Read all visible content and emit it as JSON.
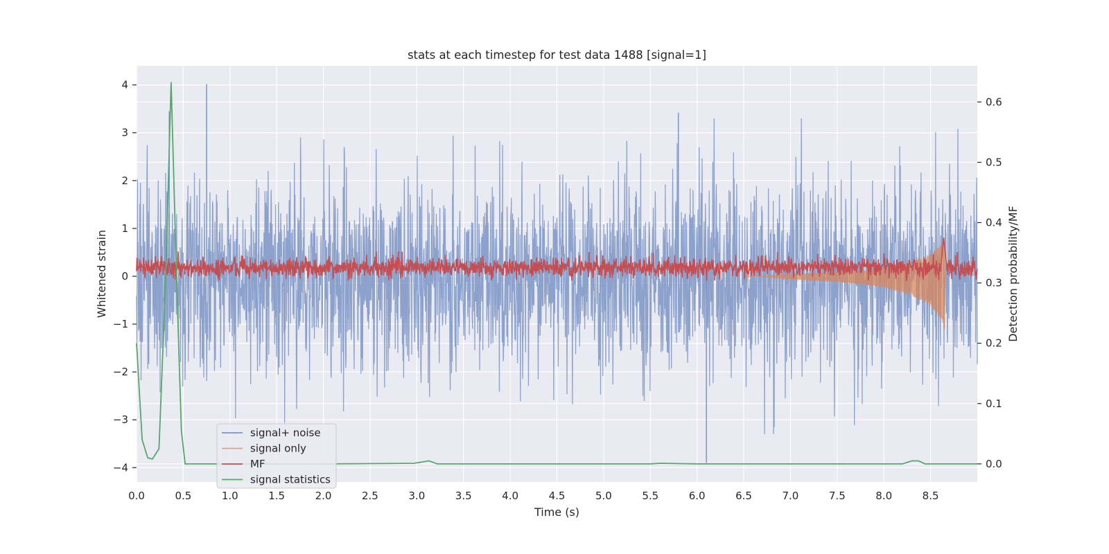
{
  "chart_data": {
    "type": "line",
    "title": "stats at each timestep for test data 1488 [signal=1]",
    "xlabel": "Time (s)",
    "ylabel": "Whitened strain",
    "y2label": "Detection probability/MF",
    "xlim": [
      0.0,
      9.0
    ],
    "ylim": [
      -4.3,
      4.4
    ],
    "y2lim": [
      -0.03,
      0.66
    ],
    "xticks": [
      "0.0",
      "0.5",
      "1.0",
      "1.5",
      "2.0",
      "2.5",
      "3.0",
      "3.5",
      "4.0",
      "4.5",
      "5.0",
      "5.5",
      "6.0",
      "6.5",
      "7.0",
      "7.5",
      "8.0",
      "8.5"
    ],
    "yticks": [
      "−4",
      "−3",
      "−2",
      "−1",
      "0",
      "1",
      "2",
      "3",
      "4"
    ],
    "y2ticks": [
      "0.0",
      "0.1",
      "0.2",
      "0.3",
      "0.4",
      "0.5",
      "0.6"
    ],
    "grid": true,
    "legend_position": "lower-left",
    "series": [
      {
        "name": "signal+ noise",
        "axis": "left",
        "color": "#7b95c6",
        "description": "dense noisy whitened strain, roughly within ±2.5, peaks near ±4",
        "amplitude_envelope": [
          -2.5,
          2.5
        ],
        "extremes": [
          [
            0.75,
            4.02
          ],
          [
            6.1,
            -3.9
          ],
          [
            0.35,
            3.45
          ],
          [
            5.8,
            3.42
          ]
        ]
      },
      {
        "name": "signal only",
        "axis": "left",
        "color": "#dd8452",
        "description": "chirp signal growing toward merger",
        "points": [
          [
            0.0,
            0.0
          ],
          [
            6.5,
            0.02
          ],
          [
            7.0,
            -0.05
          ],
          [
            7.5,
            -0.1
          ],
          [
            8.0,
            -0.2
          ],
          [
            8.3,
            -0.35
          ],
          [
            8.5,
            -0.55
          ],
          [
            8.62,
            -0.8
          ],
          [
            8.65,
            -1.0
          ],
          [
            8.66,
            0.0
          ]
        ]
      },
      {
        "name": "MF",
        "axis": "right",
        "color": "#c44e52",
        "description": "matched filter output, baseline ~0.32, peak ~0.38 at 8.64 s",
        "baseline": 0.325,
        "points": [
          [
            0.0,
            0.32
          ],
          [
            8.6,
            0.335
          ],
          [
            8.64,
            0.38
          ],
          [
            8.7,
            0.325
          ],
          [
            9.0,
            0.325
          ]
        ]
      },
      {
        "name": "signal statistics",
        "axis": "right",
        "color": "#55a868",
        "points": [
          [
            0.0,
            0.2
          ],
          [
            0.06,
            0.04
          ],
          [
            0.12,
            0.01
          ],
          [
            0.17,
            0.008
          ],
          [
            0.24,
            0.025
          ],
          [
            0.31,
            0.3
          ],
          [
            0.37,
            0.633
          ],
          [
            0.43,
            0.3
          ],
          [
            0.48,
            0.055
          ],
          [
            0.52,
            0.0
          ],
          [
            1.0,
            0.0
          ],
          [
            2.0,
            0.0
          ],
          [
            2.97,
            0.001
          ],
          [
            3.13,
            0.005
          ],
          [
            3.22,
            0.0
          ],
          [
            4.0,
            0.0
          ],
          [
            5.5,
            0.0
          ],
          [
            5.6,
            0.001
          ],
          [
            6.0,
            0.0
          ],
          [
            8.2,
            0.0
          ],
          [
            8.3,
            0.005
          ],
          [
            8.37,
            0.005
          ],
          [
            8.44,
            0.0
          ],
          [
            9.0,
            0.0
          ]
        ]
      }
    ]
  },
  "colors": {
    "axes_bg": "#eaeaf2",
    "grid": "#ffffff",
    "text": "#262626",
    "legend_bg": "#eaeaf2",
    "legend_border": "#cccccc"
  }
}
